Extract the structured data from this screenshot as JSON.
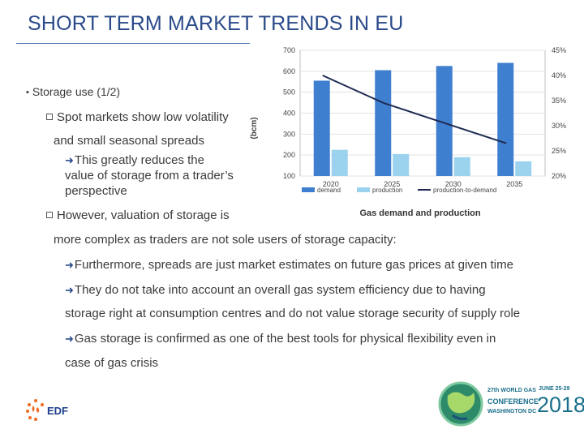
{
  "title": "SHORT TERM MARKET TRENDS IN EU",
  "bullets": {
    "heading": "Storage use (1/2)",
    "spot_line1": "Spot markets show low volatility",
    "spot_line2": "and small seasonal spreads",
    "reduce_line1": "This greatly reduces the",
    "reduce_line2": "value of storage from a trader’s",
    "reduce_line3": "perspective",
    "however_line1": "However, valuation of storage is",
    "however_line2": "more complex as traders are not sole users of storage capacity:",
    "further": "Furthermore, spreads are just market estimates on future gas prices at given time",
    "they_line1": "They do not take into account an overall gas system efficiency due to having",
    "they_line2": "storage right at consumption centres and do not value storage security of supply role",
    "gas_line1": "Gas storage is confirmed as one of the best tools for physical flexibility even in",
    "gas_line2": "case of gas crisis"
  },
  "chart_data": {
    "type": "bar",
    "title": "Gas demand and production",
    "categories": [
      "2020",
      "2025",
      "2030",
      "2035"
    ],
    "series": [
      {
        "name": "demand",
        "values": [
          555,
          605,
          625,
          640
        ],
        "color": "#3f7fcf"
      },
      {
        "name": "production",
        "values": [
          225,
          205,
          190,
          170
        ],
        "color": "#9bd3ee"
      },
      {
        "name": "production-to-demand",
        "values": [
          40,
          34.5,
          30.5,
          26.5
        ],
        "axis": "right",
        "color": "#1e2a52"
      }
    ],
    "ylabel": "(bcm)",
    "ylim": [
      100,
      700
    ],
    "yticks": [
      "100",
      "200",
      "300",
      "400",
      "500",
      "600",
      "700"
    ],
    "y2lim": [
      20,
      45
    ],
    "y2ticks": [
      "20%",
      "25%",
      "30%",
      "35%",
      "40%",
      "45%"
    ],
    "legend": [
      "demand",
      "production",
      "production-to-demand"
    ]
  },
  "footer": {
    "logo_text": "EDF",
    "conference_line1": "27th WORLD GAS",
    "conference_line2": "CONFERENCE",
    "conference_line3": "WASHINGTON DC",
    "conference_dates": "JUNE 25-29",
    "conference_year": "2018"
  },
  "colors": {
    "title": "#2a4a8a",
    "accent": "#1a6f8a"
  }
}
